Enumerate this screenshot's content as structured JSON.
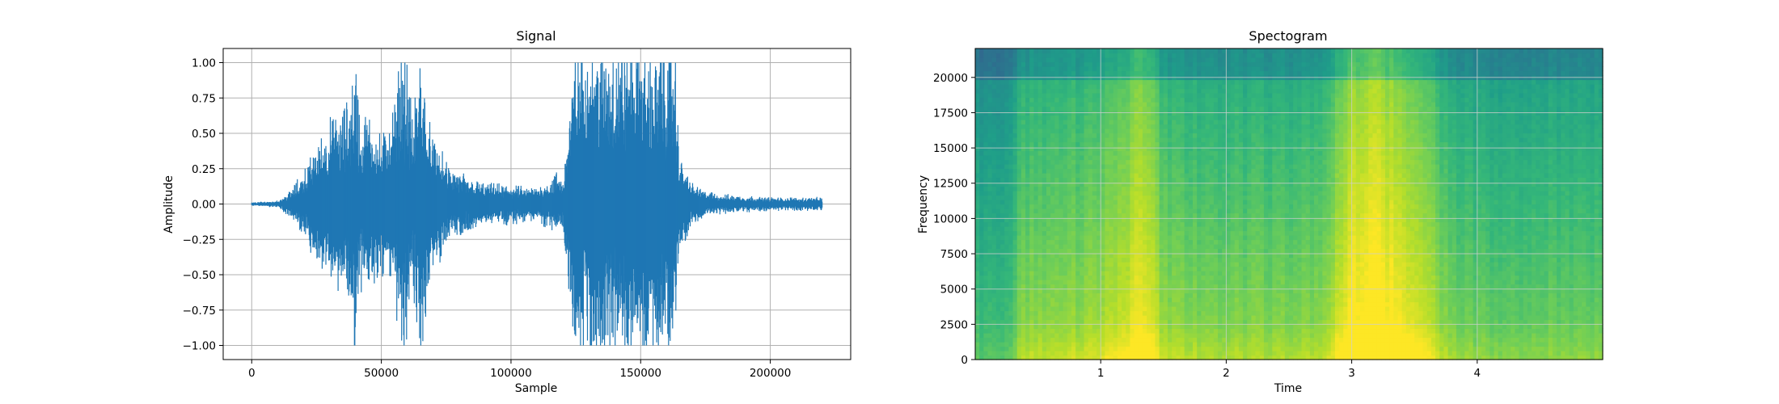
{
  "chart_data": [
    {
      "type": "line",
      "title": "Signal",
      "xlabel": "Sample",
      "ylabel": "Amplitude",
      "xlim": [
        -11000,
        231000
      ],
      "ylim": [
        -1.1,
        1.1
      ],
      "x_ticks": [
        0,
        50000,
        100000,
        150000,
        200000
      ],
      "y_ticks": [
        -1.0,
        -0.75,
        -0.5,
        -0.25,
        0.0,
        0.25,
        0.5,
        0.75,
        1.0
      ],
      "grid": true,
      "color": "#1f77b4",
      "series": [
        {
          "x": [
            0,
            10000,
            15000,
            20000,
            25000,
            30000,
            35000,
            38000,
            40000,
            42000,
            45000,
            50000,
            55000,
            58000,
            60000,
            62000,
            65000,
            68000,
            70000,
            75000,
            80000,
            85000,
            90000,
            95000,
            100000,
            105000,
            110000,
            115000,
            118000,
            120000,
            125000,
            128000,
            130000,
            135000,
            140000,
            145000,
            150000,
            155000,
            160000,
            163000,
            165000,
            170000,
            175000,
            180000,
            190000,
            200000,
            210000,
            220000
          ],
          "envelope": [
            0.01,
            0.02,
            0.08,
            0.2,
            0.35,
            0.5,
            0.55,
            0.7,
            0.95,
            0.5,
            0.55,
            0.4,
            0.6,
            1.0,
            0.85,
            0.5,
            1.0,
            0.5,
            0.4,
            0.25,
            0.2,
            0.15,
            0.12,
            0.12,
            0.12,
            0.1,
            0.1,
            0.15,
            0.2,
            0.15,
            1.0,
            1.0,
            1.0,
            1.0,
            1.0,
            1.0,
            1.0,
            0.9,
            1.0,
            1.0,
            0.3,
            0.12,
            0.08,
            0.06,
            0.05,
            0.04,
            0.04,
            0.04
          ]
        }
      ]
    },
    {
      "type": "heatmap",
      "title": "Spectogram",
      "xlabel": "Time",
      "ylabel": "Frequency",
      "xlim": [
        0.0,
        5.0
      ],
      "ylim": [
        0,
        22050
      ],
      "x_ticks": [
        1,
        2,
        3,
        4
      ],
      "y_ticks": [
        0,
        2500,
        5000,
        7500,
        10000,
        12500,
        15000,
        17500,
        20000
      ],
      "grid": true,
      "colormap": "viridis",
      "time_profile": {
        "t": [
          0.0,
          0.3,
          0.35,
          0.6,
          0.8,
          1.0,
          1.2,
          1.3,
          1.4,
          1.5,
          1.8,
          2.2,
          2.5,
          2.8,
          2.9,
          3.0,
          3.2,
          3.4,
          3.6,
          3.7,
          3.8,
          4.2,
          4.6,
          5.0
        ],
        "level": [
          0.3,
          0.3,
          0.5,
          0.55,
          0.55,
          0.6,
          0.7,
          0.85,
          0.75,
          0.55,
          0.5,
          0.5,
          0.5,
          0.55,
          0.7,
          0.85,
          0.9,
          0.8,
          0.7,
          0.55,
          0.45,
          0.42,
          0.42,
          0.42
        ]
      }
    }
  ]
}
